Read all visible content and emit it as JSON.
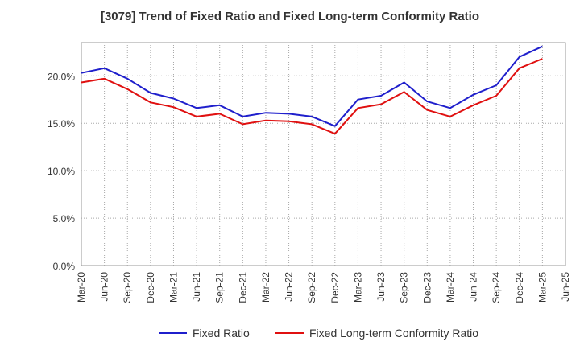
{
  "chart_data": {
    "type": "line",
    "title": "[3079]  Trend of Fixed Ratio and Fixed Long-term Conformity Ratio",
    "xlabel": "",
    "ylabel": "",
    "categories": [
      "Mar-20",
      "Jun-20",
      "Sep-20",
      "Dec-20",
      "Mar-21",
      "Jun-21",
      "Sep-21",
      "Dec-21",
      "Mar-22",
      "Jun-22",
      "Sep-22",
      "Dec-22",
      "Mar-23",
      "Jun-23",
      "Sep-23",
      "Dec-23",
      "Mar-24",
      "Jun-24",
      "Sep-24",
      "Dec-24",
      "Mar-25",
      "Jun-25"
    ],
    "ylim": [
      0,
      23.5
    ],
    "yticks": [
      0,
      5,
      10,
      15,
      20
    ],
    "ytick_labels": [
      "0.0%",
      "5.0%",
      "10.0%",
      "15.0%",
      "20.0%"
    ],
    "grid": true,
    "legend_position": "bottom",
    "series": [
      {
        "name": "Fixed Ratio",
        "color": "#1f1fcc",
        "values": [
          20.3,
          20.8,
          19.7,
          18.2,
          17.6,
          16.6,
          16.9,
          15.7,
          16.1,
          16.0,
          15.7,
          14.7,
          17.5,
          17.9,
          19.3,
          17.3,
          16.6,
          18.0,
          19.0,
          22.0,
          23.1,
          null
        ]
      },
      {
        "name": "Fixed Long-term Conformity Ratio",
        "color": "#e01010",
        "values": [
          19.3,
          19.7,
          18.6,
          17.2,
          16.7,
          15.7,
          16.0,
          14.9,
          15.3,
          15.2,
          14.9,
          13.9,
          16.6,
          17.0,
          18.3,
          16.4,
          15.7,
          16.9,
          17.9,
          20.8,
          21.8,
          null
        ]
      }
    ]
  }
}
